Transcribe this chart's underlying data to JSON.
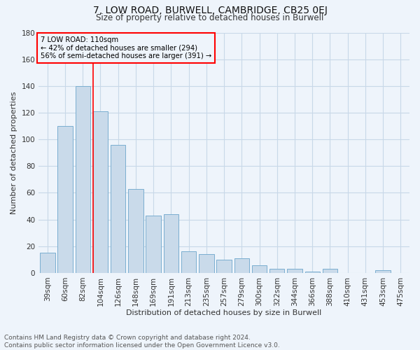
{
  "title": "7, LOW ROAD, BURWELL, CAMBRIDGE, CB25 0EJ",
  "subtitle": "Size of property relative to detached houses in Burwell",
  "xlabel": "Distribution of detached houses by size in Burwell",
  "ylabel": "Number of detached properties",
  "footer_line1": "Contains HM Land Registry data © Crown copyright and database right 2024.",
  "footer_line2": "Contains public sector information licensed under the Open Government Licence v3.0.",
  "categories": [
    "39sqm",
    "60sqm",
    "82sqm",
    "104sqm",
    "126sqm",
    "148sqm",
    "169sqm",
    "191sqm",
    "213sqm",
    "235sqm",
    "257sqm",
    "279sqm",
    "300sqm",
    "322sqm",
    "344sqm",
    "366sqm",
    "388sqm",
    "410sqm",
    "431sqm",
    "453sqm",
    "475sqm"
  ],
  "values": [
    15,
    110,
    140,
    121,
    96,
    63,
    43,
    44,
    16,
    14,
    10,
    11,
    6,
    3,
    3,
    1,
    3,
    0,
    0,
    2,
    0
  ],
  "bar_color": "#c9daea",
  "bar_edge_color": "#7aaed0",
  "grid_color": "#c8d8e8",
  "background_color": "#eef4fb",
  "ref_line_color": "red",
  "annotation_line1": "7 LOW ROAD: 110sqm",
  "annotation_line2": "← 42% of detached houses are smaller (294)",
  "annotation_line3": "56% of semi-detached houses are larger (391) →",
  "annotation_box_color": "red",
  "ylim": [
    0,
    180
  ],
  "yticks": [
    0,
    20,
    40,
    60,
    80,
    100,
    120,
    140,
    160,
    180
  ],
  "title_fontsize": 10,
  "subtitle_fontsize": 8.5,
  "axis_label_fontsize": 8,
  "tick_fontsize": 7.5,
  "footer_fontsize": 6.5
}
